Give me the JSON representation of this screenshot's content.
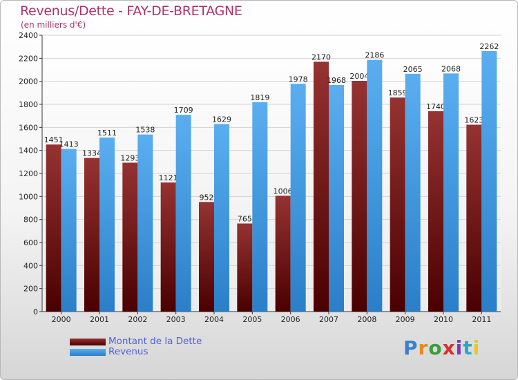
{
  "header": {
    "title": "Revenus/Dette - FAY-DE-BRETAGNE",
    "subtitle": "(en milliers d'€)"
  },
  "legend": {
    "dette_label": "Montant de la Dette",
    "revenus_label": "Revenus"
  },
  "logo": {
    "text": "Proxiti"
  },
  "colors": {
    "dette": "#7a1515",
    "revenus": "#3d95dd",
    "title": "#b0306a",
    "legend_text": "#5060d8"
  },
  "chart_data": {
    "type": "bar",
    "categories": [
      "2000",
      "2001",
      "2002",
      "2003",
      "2004",
      "2005",
      "2006",
      "2007",
      "2008",
      "2009",
      "2010",
      "2011"
    ],
    "series": [
      {
        "name": "Montant de la Dette",
        "values": [
          1451,
          1334,
          1293,
          1121,
          952,
          765,
          1006,
          2170,
          2004,
          1859,
          1740,
          1623
        ]
      },
      {
        "name": "Revenus",
        "values": [
          1413,
          1511,
          1538,
          1709,
          1629,
          1819,
          1978,
          1968,
          2186,
          2065,
          2068,
          2262
        ]
      }
    ],
    "ylim": [
      0,
      2400
    ],
    "yticks": [
      0,
      200,
      400,
      600,
      800,
      1000,
      1200,
      1400,
      1600,
      1800,
      2000,
      2200,
      2400
    ],
    "grid": true,
    "legend_position": "bottom-left"
  }
}
